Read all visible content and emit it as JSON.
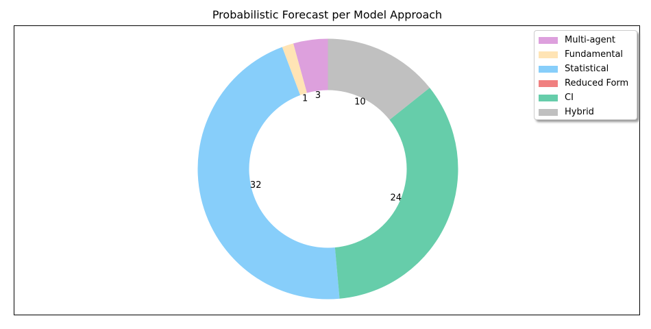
{
  "chart_data": {
    "type": "pie",
    "variant": "donut",
    "title": "Probabilistic Forecast per Model Approach",
    "start_angle_deg": 90,
    "direction": "counterclockwise",
    "legend_position": "top-right",
    "slices": [
      {
        "label": "Multi-agent",
        "value": 3,
        "display": "3",
        "color": "#dda0dd"
      },
      {
        "label": "Fundamental",
        "value": 1,
        "display": "1",
        "color": "#ffe4b5"
      },
      {
        "label": "Statistical",
        "value": 32,
        "display": "32",
        "color": "#87cefa"
      },
      {
        "label": "Reduced Form",
        "value": 0,
        "display": "",
        "color": "#f08080"
      },
      {
        "label": "CI",
        "value": 24,
        "display": "24",
        "color": "#66cdaa"
      },
      {
        "label": "Hybrid",
        "value": 10,
        "display": "10",
        "color": "#c0c0c0"
      }
    ]
  }
}
